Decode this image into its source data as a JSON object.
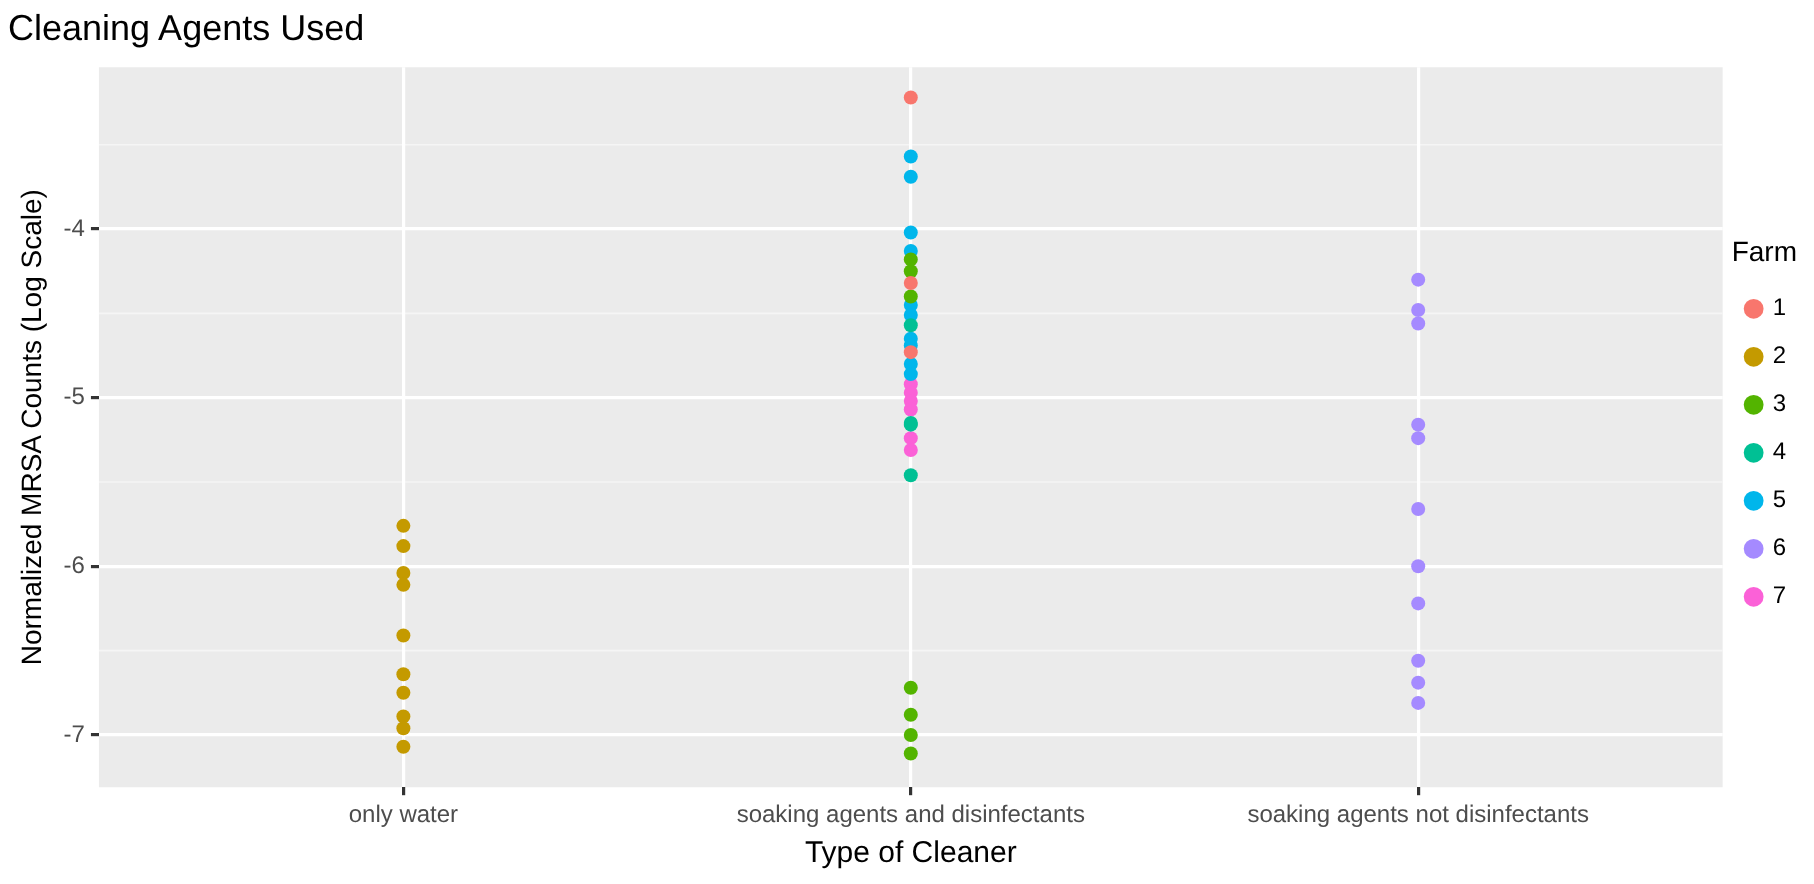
{
  "chart_data": {
    "type": "scatter",
    "title": "Cleaning Agents Used",
    "xlabel": "Type of Cleaner",
    "ylabel": "Normalized MRSA Counts (Log Scale)",
    "legend_title": "Farm",
    "categories": [
      "only water",
      "soaking agents and disinfectants",
      "soaking agents not disinfectants"
    ],
    "ylim": [
      -7.31,
      -3.04
    ],
    "yticks": [
      -7,
      -6,
      -5,
      -4
    ],
    "grid": true,
    "legend": "right",
    "marker": "circle",
    "series": [
      {
        "name": "1",
        "color": "#f8766d",
        "x": [
          "soaking agents and disinfectants",
          "soaking agents and disinfectants",
          "soaking agents and disinfectants"
        ],
        "values": [
          -3.22,
          -4.32,
          -4.73
        ]
      },
      {
        "name": "2",
        "color": "#c49a00",
        "x": [
          "only water",
          "only water",
          "only water",
          "only water",
          "only water",
          "only water",
          "only water",
          "only water",
          "only water",
          "only water"
        ],
        "values": [
          -5.76,
          -5.88,
          -6.04,
          -6.11,
          -6.41,
          -6.64,
          -6.75,
          -6.89,
          -6.96,
          -7.07
        ]
      },
      {
        "name": "3",
        "color": "#53b400",
        "x": [
          "soaking agents and disinfectants",
          "soaking agents and disinfectants",
          "soaking agents and disinfectants",
          "soaking agents and disinfectants",
          "soaking agents and disinfectants",
          "soaking agents and disinfectants",
          "soaking agents and disinfectants"
        ],
        "values": [
          -4.18,
          -4.25,
          -4.4,
          -6.72,
          -6.88,
          -7.0,
          -7.11
        ]
      },
      {
        "name": "4",
        "color": "#00c094",
        "x": [
          "soaking agents and disinfectants",
          "soaking agents and disinfectants",
          "soaking agents and disinfectants",
          "soaking agents and disinfectants",
          "soaking agents and disinfectants"
        ],
        "values": [
          null,
          -4.57,
          -5.15,
          -5.16,
          -5.46
        ]
      },
      {
        "name": "5",
        "color": "#00b6eb",
        "x": [
          "soaking agents and disinfectants",
          "soaking agents and disinfectants",
          "soaking agents and disinfectants",
          "soaking agents and disinfectants",
          "soaking agents and disinfectants",
          "soaking agents and disinfectants",
          "soaking agents and disinfectants",
          "soaking agents and disinfectants",
          "soaking agents and disinfectants",
          "soaking agents and disinfectants",
          "soaking agents and disinfectants"
        ],
        "values": [
          -3.57,
          -3.69,
          -4.02,
          -4.13,
          null,
          -4.45,
          -4.51,
          -4.65,
          -4.69,
          -4.8,
          -4.86
        ]
      },
      {
        "name": "6",
        "color": "#a58aff",
        "x": [
          "soaking agents not disinfectants",
          "soaking agents not disinfectants",
          "soaking agents not disinfectants",
          "soaking agents not disinfectants",
          "soaking agents not disinfectants",
          "soaking agents not disinfectants",
          "soaking agents not disinfectants",
          "soaking agents not disinfectants",
          "soaking agents not disinfectants",
          "soaking agents not disinfectants",
          "soaking agents not disinfectants"
        ],
        "values": [
          -4.3,
          -4.48,
          -4.56,
          -5.16,
          -5.24,
          -5.66,
          -6.0,
          -6.22,
          -6.56,
          -6.69,
          -6.81
        ]
      },
      {
        "name": "7",
        "color": "#fb61d7",
        "x": [
          "soaking agents and disinfectants",
          "soaking agents and disinfectants",
          "soaking agents and disinfectants",
          "soaking agents and disinfectants",
          "soaking agents and disinfectants",
          "soaking agents and disinfectants",
          "soaking agents and disinfectants"
        ],
        "values": [
          -4.92,
          -4.97,
          -5.02,
          -5.07,
          null,
          -5.24,
          -5.31
        ]
      }
    ]
  }
}
